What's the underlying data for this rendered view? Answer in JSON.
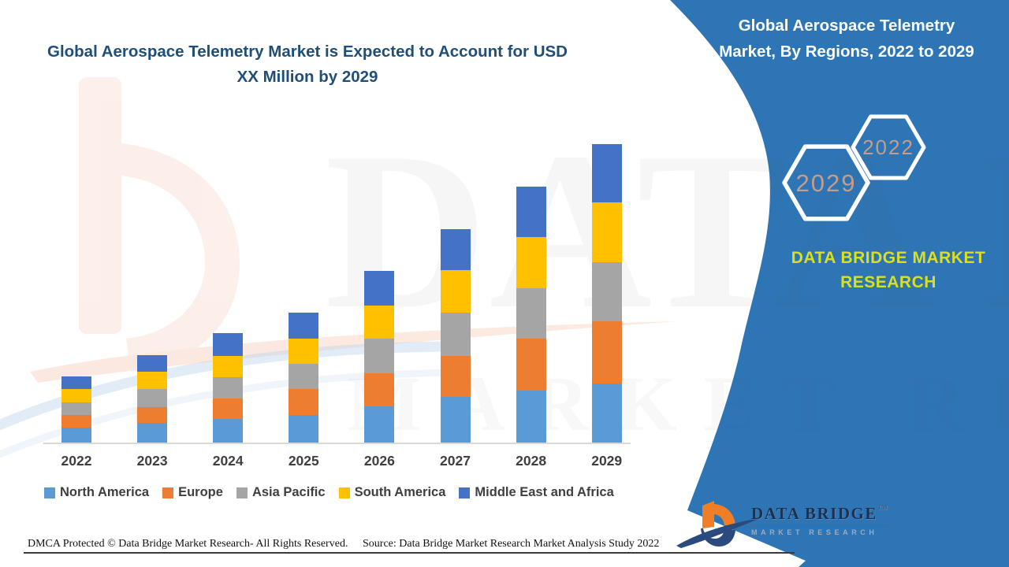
{
  "header": {
    "title_line1": "Global Aerospace Telemetry Market is Expected to Account for USD",
    "title_line2": "XX Million by 2029"
  },
  "side_panel": {
    "title_line1": "Global Aerospace Telemetry",
    "title_line2": "Market, By Regions, 2022 to 2029",
    "hexagon_large_label": "2029",
    "hexagon_small_label": "2022",
    "brand_line1": "DATA BRIDGE MARKET",
    "brand_line2": "RESEARCH"
  },
  "chart_data": {
    "type": "bar",
    "stacked": true,
    "title": "Global Aerospace Telemetry Market, By Regions, 2022 to 2029",
    "xlabel": "",
    "ylabel": "",
    "value_axis_visible": false,
    "values_unit": "relative units (no value axis shown; market size labeled only as USD XX Million)",
    "grid": false,
    "legend_position": "bottom",
    "categories": [
      "2022",
      "2023",
      "2024",
      "2025",
      "2026",
      "2027",
      "2028",
      "2029"
    ],
    "series": [
      {
        "name": "North America",
        "color": "#5B9BD5",
        "values": [
          19,
          25,
          30,
          35,
          46,
          58,
          66,
          75
        ]
      },
      {
        "name": "Europe",
        "color": "#ED7D31",
        "values": [
          16,
          20,
          26,
          33,
          42,
          52,
          66,
          79
        ]
      },
      {
        "name": "Asia Pacific",
        "color": "#A5A5A5",
        "values": [
          16,
          23,
          27,
          32,
          44,
          55,
          64,
          75
        ]
      },
      {
        "name": "South America",
        "color": "#FFC000",
        "values": [
          17,
          22,
          27,
          32,
          42,
          54,
          65,
          76
        ]
      },
      {
        "name": "Middle East and Africa",
        "color": "#4472C4",
        "values": [
          16,
          21,
          29,
          33,
          44,
          52,
          64,
          74
        ]
      }
    ],
    "bar_totals": [
      84,
      111,
      139,
      165,
      218,
      271,
      325,
      379
    ]
  },
  "footer": {
    "dmca": "DMCA Protected © Data Bridge Market Research- All Rights Reserved.",
    "source": "Source: Data Bridge Market Research Market Analysis Study 2022"
  },
  "logo": {
    "wordmark": "DATA BRIDGE",
    "trademark": "TM",
    "tagline": "MARKET RESEARCH"
  },
  "watermark": {
    "line1": "DATA BRIDGE",
    "line2": "MARKET RESEARCH"
  },
  "colors": {
    "panel_blue": "#2E75B6",
    "title_blue": "#1F4E79",
    "brand_yellow": "#D9E021",
    "hexagon_text": "#C69C8B",
    "hexagon_stroke": "#FFFFFF",
    "axis_line": "#D9D9D9",
    "label_gray": "#3F3F3F",
    "logo_navy": "#2B4A7E",
    "logo_orange": "#F07E26",
    "watermark_peach": "#FBE3D8"
  }
}
